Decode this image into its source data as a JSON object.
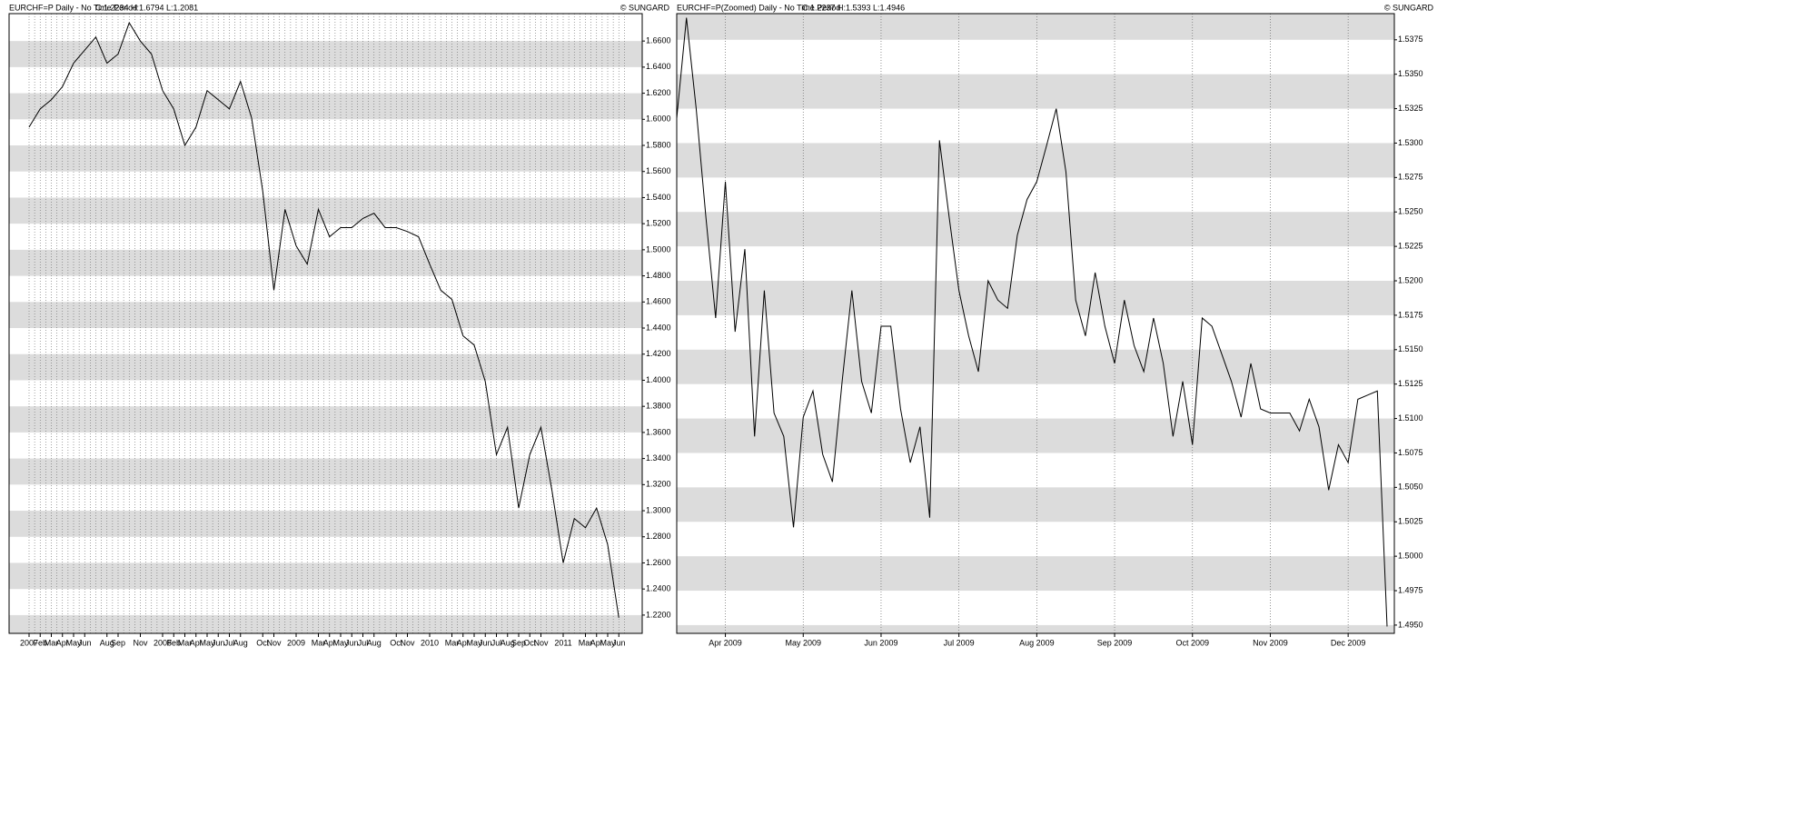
{
  "chart_data": [
    {
      "type": "line",
      "title": "EURCHF=P Daily -  No Time Period",
      "subtitle": "C:1.2234 H:1.6794 L:1.2081",
      "source": "© SUNGARD",
      "color": "#000000",
      "grid": true,
      "categories": [
        "2007",
        "Feb",
        "Mar",
        "Apr",
        "May",
        "Jun",
        null,
        "Aug",
        "Sep",
        null,
        "Nov",
        null,
        "2008",
        "Feb",
        "Mar",
        "Apr",
        "May",
        "Jun",
        "Jul",
        "Aug",
        null,
        "Oct",
        "Nov",
        null,
        "2009",
        null,
        "Mar",
        "Apr",
        "May",
        "Jun",
        "Jul",
        "Aug",
        null,
        "Oct",
        "Nov",
        null,
        "2010",
        null,
        "Mar",
        "Apr",
        "May",
        "Jun",
        "Jul",
        "Aug",
        "Sep",
        "Oct",
        "Nov",
        null,
        "2011",
        null,
        "Mar",
        "Apr",
        "May",
        "Jun"
      ],
      "values": [
        1.594,
        1.608,
        1.615,
        1.625,
        1.643,
        1.653,
        1.663,
        1.643,
        1.65,
        1.674,
        1.66,
        1.65,
        1.622,
        1.608,
        1.58,
        1.594,
        1.622,
        1.615,
        1.608,
        1.629,
        1.601,
        1.545,
        1.469,
        1.531,
        1.503,
        1.489,
        1.531,
        1.51,
        1.517,
        1.517,
        1.524,
        1.528,
        1.517,
        1.517,
        1.514,
        1.51,
        1.489,
        1.469,
        1.462,
        1.434,
        1.427,
        1.399,
        1.343,
        1.364,
        1.302,
        1.343,
        1.364,
        1.315,
        1.26,
        1.294,
        1.287,
        1.302,
        1.274,
        1.218
      ],
      "ylim": [
        1.206,
        1.681
      ],
      "yticks": [
        {
          "value": 1.22,
          "label": "1.2200"
        },
        {
          "value": 1.24,
          "label": "1.2400"
        },
        {
          "value": 1.26,
          "label": "1.2600"
        },
        {
          "value": 1.28,
          "label": "1.2800"
        },
        {
          "value": 1.3,
          "label": "1.3000"
        },
        {
          "value": 1.32,
          "label": "1.3200"
        },
        {
          "value": 1.34,
          "label": "1.3400"
        },
        {
          "value": 1.36,
          "label": "1.3600"
        },
        {
          "value": 1.38,
          "label": "1.3800"
        },
        {
          "value": 1.4,
          "label": "1.4000"
        },
        {
          "value": 1.42,
          "label": "1.4200"
        },
        {
          "value": 1.44,
          "label": "1.4400"
        },
        {
          "value": 1.46,
          "label": "1.4600"
        },
        {
          "value": 1.48,
          "label": "1.4800"
        },
        {
          "value": 1.5,
          "label": "1.5000"
        },
        {
          "value": 1.52,
          "label": "1.5200"
        },
        {
          "value": 1.54,
          "label": "1.5400"
        },
        {
          "value": 1.56,
          "label": "1.5600"
        },
        {
          "value": 1.58,
          "label": "1.5800"
        },
        {
          "value": 1.6,
          "label": "1.6000"
        },
        {
          "value": 1.62,
          "label": "1.6200"
        },
        {
          "value": 1.64,
          "label": "1.6400"
        },
        {
          "value": 1.66,
          "label": "1.6600"
        }
      ]
    },
    {
      "type": "line",
      "title": "EURCHF=P(Zoomed) Daily -  No Time Period",
      "subtitle": "C:1.2237 H:1.5393 L:1.4946",
      "source": "© SUNGARD",
      "color": "#000000",
      "grid": true,
      "categories": [
        null,
        null,
        null,
        null,
        null,
        "Apr 2009",
        null,
        null,
        null,
        null,
        null,
        null,
        null,
        "May 2009",
        null,
        null,
        null,
        null,
        null,
        null,
        null,
        "Jun 2009",
        null,
        null,
        null,
        null,
        null,
        null,
        null,
        "Jul 2009",
        null,
        null,
        null,
        null,
        null,
        null,
        null,
        "Aug 2009",
        null,
        null,
        null,
        null,
        null,
        null,
        null,
        "Sep 2009",
        null,
        null,
        null,
        null,
        null,
        null,
        null,
        "Oct 2009",
        null,
        null,
        null,
        null,
        null,
        null,
        null,
        "Nov 2009",
        null,
        null,
        null,
        null,
        null,
        null,
        null,
        "Dec 2009",
        null,
        null,
        null,
        null
      ],
      "values": [
        1.5318,
        1.5391,
        1.5325,
        1.5246,
        1.5173,
        1.5272,
        1.5163,
        1.5223,
        1.5087,
        1.5193,
        1.5104,
        1.5087,
        1.5021,
        1.5101,
        1.512,
        1.5074,
        1.5054,
        1.5127,
        1.5193,
        1.5127,
        1.5104,
        1.5167,
        1.5167,
        1.5107,
        1.5068,
        1.5094,
        1.5028,
        1.5302,
        1.5246,
        1.5193,
        1.516,
        1.5134,
        1.52,
        1.5186,
        1.518,
        1.5233,
        1.5259,
        1.5272,
        1.5298,
        1.5325,
        1.5279,
        1.5186,
        1.516,
        1.5206,
        1.5167,
        1.514,
        1.5186,
        1.5153,
        1.5134,
        1.5173,
        1.514,
        1.5087,
        1.5127,
        1.5081,
        1.5173,
        1.5167,
        1.5147,
        1.5127,
        1.5101,
        1.514,
        1.5107,
        1.5104,
        1.5104,
        1.5104,
        1.5091,
        1.5114,
        1.5094,
        1.5048,
        1.5081,
        1.5068,
        1.5114,
        1.5117,
        1.512,
        1.4949
      ],
      "ylim": [
        1.4944,
        1.5394
      ],
      "yticks": [
        {
          "value": 1.495,
          "label": "1.4950"
        },
        {
          "value": 1.4975,
          "label": "1.4975"
        },
        {
          "value": 1.5,
          "label": "1.5000"
        },
        {
          "value": 1.5025,
          "label": "1.5025"
        },
        {
          "value": 1.505,
          "label": "1.5050"
        },
        {
          "value": 1.5075,
          "label": "1.5075"
        },
        {
          "value": 1.51,
          "label": "1.5100"
        },
        {
          "value": 1.5125,
          "label": "1.5125"
        },
        {
          "value": 1.515,
          "label": "1.5150"
        },
        {
          "value": 1.5175,
          "label": "1.5175"
        },
        {
          "value": 1.52,
          "label": "1.5200"
        },
        {
          "value": 1.5225,
          "label": "1.5225"
        },
        {
          "value": 1.525,
          "label": "1.5250"
        },
        {
          "value": 1.5275,
          "label": "1.5275"
        },
        {
          "value": 1.53,
          "label": "1.5300"
        },
        {
          "value": 1.5325,
          "label": "1.5325"
        },
        {
          "value": 1.535,
          "label": "1.5350"
        },
        {
          "value": 1.5375,
          "label": "1.5375"
        }
      ]
    }
  ]
}
